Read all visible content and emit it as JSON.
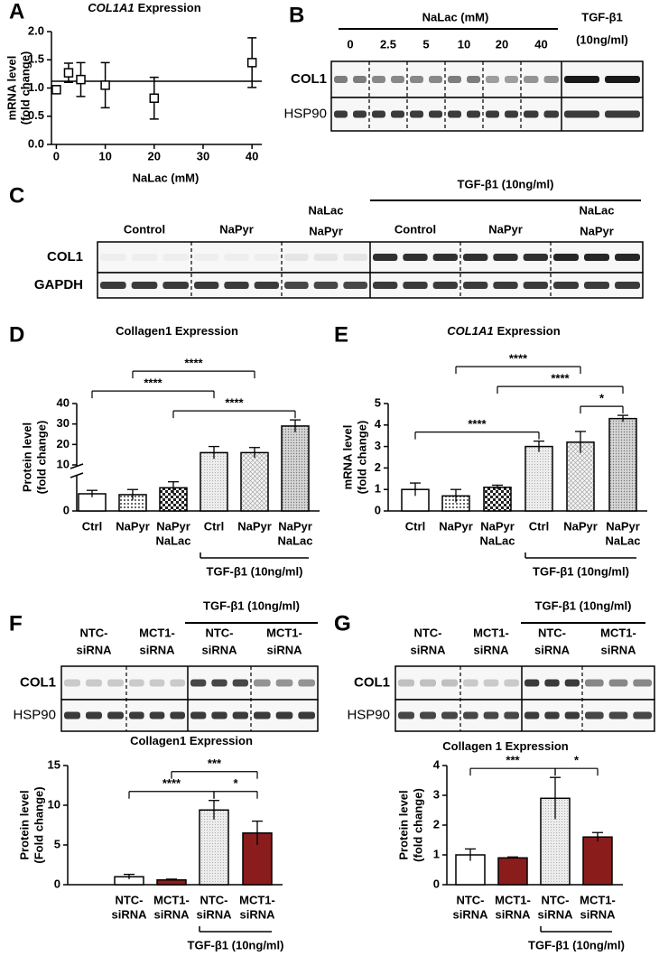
{
  "chart_data": [
    {
      "type": "scatter",
      "panel": "A",
      "title_italic": "COL1A1",
      "title": "Expression",
      "x": [
        0,
        2.5,
        5,
        10,
        20,
        40
      ],
      "values": [
        0.97,
        1.27,
        1.15,
        1.05,
        0.82,
        1.45
      ],
      "errors": [
        0.07,
        0.17,
        0.3,
        0.4,
        0.37,
        0.44
      ],
      "refline": 1.12,
      "xlim": [
        -1,
        42
      ],
      "ylim": [
        0,
        2
      ],
      "xticks": [
        0,
        10,
        20,
        30,
        40
      ],
      "yticks": [
        {
          "value": 0,
          "label": "0.0"
        },
        {
          "value": 0.5,
          "label": "0.5"
        },
        {
          "value": 1,
          "label": "1.0"
        },
        {
          "value": 1.5,
          "label": "1.5"
        },
        {
          "value": 2,
          "label": "2.0"
        }
      ],
      "xlabel": "NaLac (mM)",
      "ylabel": [
        "mRNA level",
        "(fold change)"
      ],
      "color": "#000000"
    },
    {
      "type": "bar",
      "panel": "D",
      "title": "Collagen1 Expression",
      "categories": [
        [
          "Ctrl"
        ],
        [
          "NaPyr"
        ],
        [
          "NaPyr",
          "NaLac"
        ],
        [
          "Ctrl"
        ],
        [
          "NaPyr"
        ],
        [
          "NaPyr",
          "NaLac"
        ]
      ],
      "values": [
        1.0,
        0.95,
        1.35,
        16,
        16,
        29
      ],
      "errors": [
        0.2,
        0.3,
        0.35,
        3,
        2.5,
        3
      ],
      "fills": [
        "#ffffff",
        "dots",
        "checker",
        "lightdots",
        "cross",
        "graydots"
      ],
      "ylim": [
        0,
        40
      ],
      "yticks": [
        0,
        10,
        20,
        30,
        40
      ],
      "ybreak": [
        2,
        10
      ],
      "ylabel": [
        "Protein level",
        "(fold change)"
      ],
      "annotations": [
        {
          "text": "****",
          "span": [
            1,
            4
          ]
        },
        {
          "text": "****",
          "span": [
            0,
            3
          ]
        },
        {
          "text": "****",
          "span": [
            2,
            5
          ]
        }
      ],
      "group": {
        "label": "TGF-β1 (10ng/ml)",
        "span": [
          3,
          5
        ]
      }
    },
    {
      "type": "bar",
      "panel": "E",
      "title_italic": "COL1A1",
      "title": "Expression",
      "categories": [
        [
          "Ctrl"
        ],
        [
          "NaPyr"
        ],
        [
          "NaPyr",
          "NaLac"
        ],
        [
          "Ctrl"
        ],
        [
          "NaPyr"
        ],
        [
          "NaPyr",
          "NaLac"
        ]
      ],
      "values": [
        1.0,
        0.7,
        1.1,
        3.0,
        3.2,
        4.3
      ],
      "errors": [
        0.3,
        0.3,
        0.1,
        0.25,
        0.5,
        0.15
      ],
      "fills": [
        "#ffffff",
        "dots",
        "checker",
        "lightdots",
        "cross",
        "graydots"
      ],
      "ylim": [
        0,
        5
      ],
      "yticks": [
        0,
        1,
        2,
        3,
        4,
        5
      ],
      "ylabel": [
        "mRNA level",
        "(fold change)"
      ],
      "annotations": [
        {
          "text": "****",
          "span": [
            1,
            4
          ]
        },
        {
          "text": "****",
          "span": [
            2,
            5
          ]
        },
        {
          "text": "****",
          "span": [
            0,
            3
          ]
        },
        {
          "text": "*",
          "span": [
            4,
            5
          ]
        }
      ],
      "group": {
        "label": "TGF-β1 (10ng/ml)",
        "span": [
          3,
          5
        ]
      }
    },
    {
      "type": "bar",
      "panel": "F",
      "title": "Collagen1 Expression",
      "categories": [
        [
          "NTC-",
          "siRNA"
        ],
        [
          "MCT1-",
          "siRNA"
        ],
        [
          "NTC-",
          "siRNA"
        ],
        [
          "MCT1-",
          "siRNA"
        ]
      ],
      "values": [
        1.0,
        0.6,
        9.4,
        6.5
      ],
      "errors": [
        0.3,
        0.1,
        1.2,
        1.5
      ],
      "fills": [
        "#ffffff",
        "#8b1c1c",
        "lightdots",
        "#8b1c1c"
      ],
      "ylim": [
        0,
        15
      ],
      "yticks": [
        0,
        5,
        10,
        15
      ],
      "ylabel": [
        "Protein level",
        "(Fold change)"
      ],
      "annotations": [
        {
          "text": "***",
          "span": [
            1,
            3
          ]
        },
        {
          "text": "****",
          "span": [
            0,
            2
          ]
        },
        {
          "text": "*",
          "span": [
            2,
            3
          ]
        }
      ],
      "group": {
        "label": "TGF-β1 (10ng/ml)",
        "span": [
          2,
          3
        ]
      }
    },
    {
      "type": "bar",
      "panel": "G",
      "title": "Collagen 1 Expression",
      "categories": [
        [
          "NTC-",
          "siRNA"
        ],
        [
          "MCT1-",
          "siRNA"
        ],
        [
          "NTC-",
          "siRNA"
        ],
        [
          "MCT1-",
          "siRNA"
        ]
      ],
      "values": [
        1.0,
        0.9,
        2.9,
        1.6
      ],
      "errors": [
        0.2,
        0.03,
        0.7,
        0.15
      ],
      "fills": [
        "#ffffff",
        "#8b1c1c",
        "lightdots",
        "#8b1c1c"
      ],
      "ylim": [
        0,
        4
      ],
      "yticks": [
        0,
        1,
        2,
        3,
        4
      ],
      "ylabel": [
        "Protein level",
        "(fold change)"
      ],
      "annotations": [
        {
          "text": "***",
          "span": [
            0,
            2
          ]
        },
        {
          "text": "*",
          "span": [
            2,
            3
          ]
        }
      ],
      "group": {
        "label": "TGF-β1 (10ng/ml)",
        "span": [
          2,
          3
        ]
      }
    }
  ],
  "blots": [
    {
      "panel": "B",
      "header": "NaLac (mM)",
      "groups": [
        [
          "0"
        ],
        [
          "2.5"
        ],
        [
          "5"
        ],
        [
          "10"
        ],
        [
          "20"
        ],
        [
          "40"
        ],
        [
          "TGF-β1",
          "(10ng/ml)"
        ]
      ],
      "rows": [
        "COL1",
        "HSP90"
      ]
    },
    {
      "panel": "C",
      "treatment": "TGF-β1 (10ng/ml)",
      "groups": [
        [
          "Control"
        ],
        [
          "NaPyr"
        ],
        [
          "NaLac",
          "NaPyr"
        ],
        [
          "Control"
        ],
        [
          "NaPyr"
        ],
        [
          "NaLac",
          "NaPyr"
        ]
      ],
      "rows": [
        "COL1",
        "GAPDH"
      ]
    },
    {
      "panel": "F",
      "treatment": "TGF-β1 (10ng/ml)",
      "groups": [
        [
          "NTC-",
          "siRNA"
        ],
        [
          "MCT1-",
          "siRNA"
        ],
        [
          "NTC-",
          "siRNA"
        ],
        [
          "MCT1-",
          "siRNA"
        ]
      ],
      "rows": [
        "COL1",
        "HSP90"
      ]
    },
    {
      "panel": "G",
      "treatment": "TGF-β1 (10ng/ml)",
      "groups": [
        [
          "NTC-",
          "siRNA"
        ],
        [
          "MCT1-",
          "siRNA"
        ],
        [
          "NTC-",
          "siRNA"
        ],
        [
          "MCT1-",
          "siRNA"
        ]
      ],
      "rows": [
        "COL1",
        "HSP90"
      ]
    }
  ]
}
